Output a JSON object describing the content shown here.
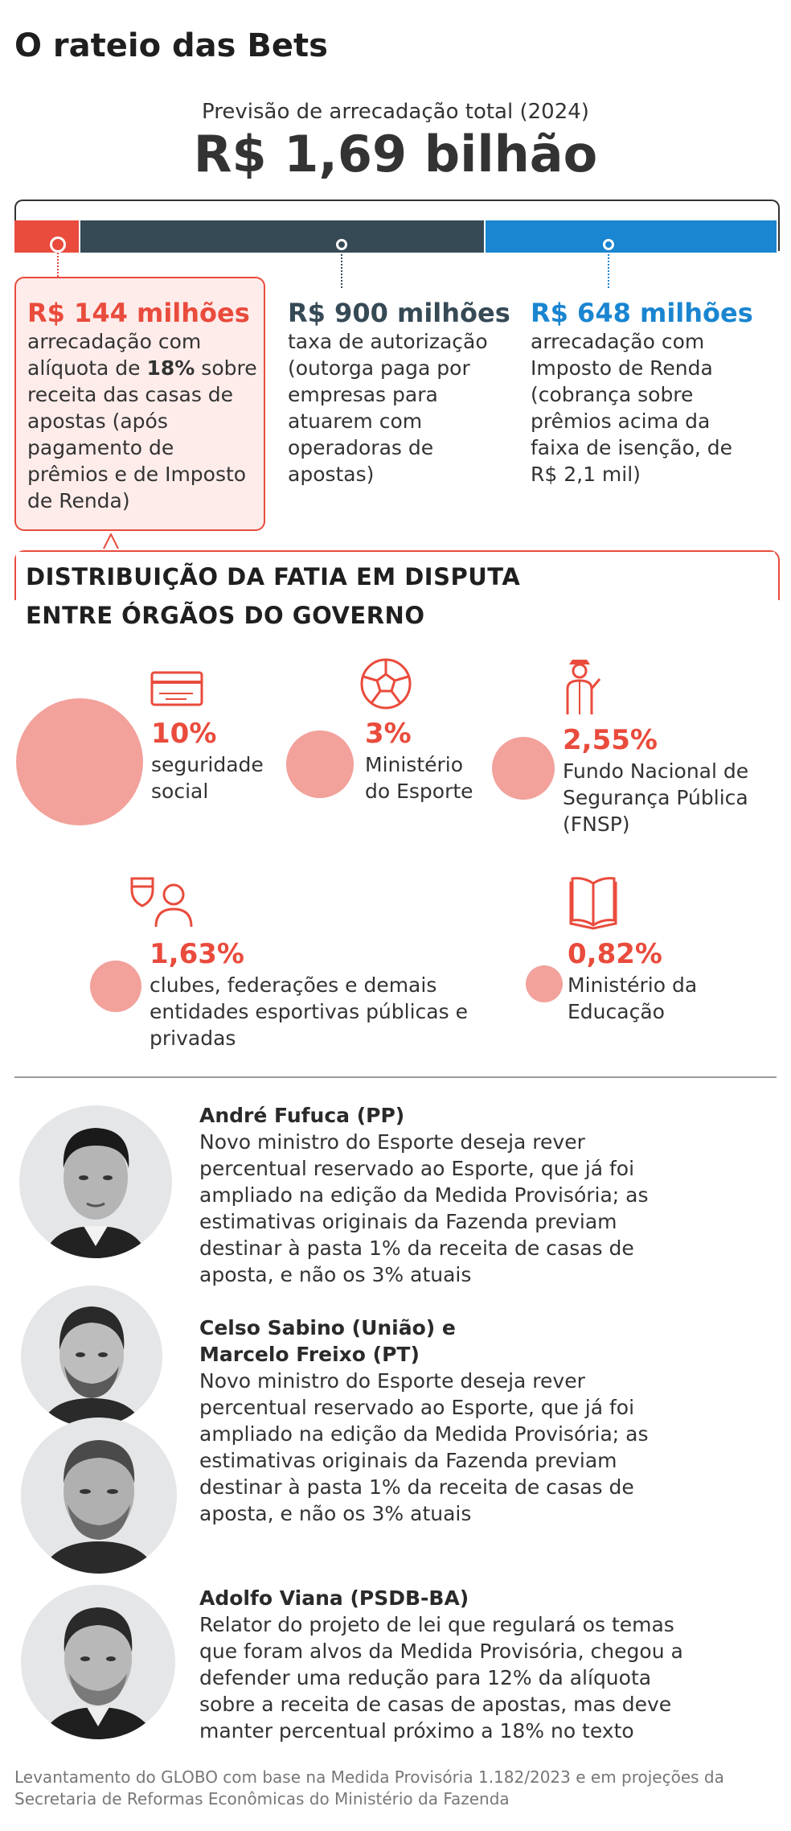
{
  "title": "O rateio das Bets",
  "subtitle": "Previsão de arrecadação total (2024)",
  "total": "R$ 1,69 bilhão",
  "colors": {
    "red": "#e94b3c",
    "dark": "#364a56",
    "blue": "#1a85d0",
    "bubble": "#f2a19b"
  },
  "breakdown": [
    {
      "amount": "R$ 144 milhões",
      "desc_pre": "arrecadação com alíquota de ",
      "desc_bold": "18%",
      "desc_post": " sobre receita das casas de apostas (após pagamento de prêmios e de Imposto de Renda)"
    },
    {
      "amount": "R$ 900 milhões",
      "desc": "taxa de autorização (outorga paga por empresas para atuarem com operadoras de apostas)"
    },
    {
      "amount": "R$ 648 milhões",
      "desc": "arrecadação com Imposto de Renda (cobrança sobre prêmios acima da faixa de isenção, de R$ 2,1 mil)"
    }
  ],
  "section": {
    "line1": "DISTRIBUIÇÃO DA FATIA EM DISPUTA",
    "line2": "ENTRE ÓRGÃOS DO GOVERNO"
  },
  "shares": [
    {
      "pct": "10%",
      "label": "seguridade social",
      "value": 10,
      "icon": "card-icon"
    },
    {
      "pct": "3%",
      "label": "Ministério do Esporte",
      "value": 3,
      "icon": "soccer-ball-icon"
    },
    {
      "pct": "2,55%",
      "label": "Fundo Nacional de Segurança Pública (FNSP)",
      "value": 2.55,
      "icon": "police-officer-icon"
    },
    {
      "pct": "1,63%",
      "label": "clubes, federações e demais entidades esportivas públicas e privadas",
      "value": 1.63,
      "icon": "athlete-shield-icon"
    },
    {
      "pct": "0,82%",
      "label": "Ministério da Educação",
      "value": 0.82,
      "icon": "book-icon"
    }
  ],
  "people": [
    {
      "name": "André Fufuca (PP)",
      "desc": "Novo ministro do Esporte deseja rever percentual reservado ao Esporte, que já foi ampliado na edição da Medida Provisória; as estimativas originais da Fazenda previam destinar à pasta 1% da receita de casas de aposta, e não os 3% atuais"
    },
    {
      "name_line1": "Celso Sabino (União) e",
      "name_line2": "Marcelo Freixo (PT)",
      "desc": "Novo ministro do Esporte deseja rever percentual reservado ao Esporte, que já foi ampliado na edição da Medida Provisória; as estimativas originais da Fazenda previam destinar à pasta 1% da receita de casas de aposta, e não os 3% atuais"
    },
    {
      "name": "Adolfo Viana (PSDB-BA)",
      "desc": "Relator do projeto de lei que regulará os temas que foram alvos da Medida Provisória, chegou a defender uma redução para 12% da alíquota sobre a receita de casas de apostas, mas deve manter percentual próximo a 18% no texto"
    }
  ],
  "source": "Levantamento do GLOBO com base na Medida Provisória 1.182/2023 e em projeções da Secretaria de Reformas Econômicas do Ministério da Fazenda"
}
